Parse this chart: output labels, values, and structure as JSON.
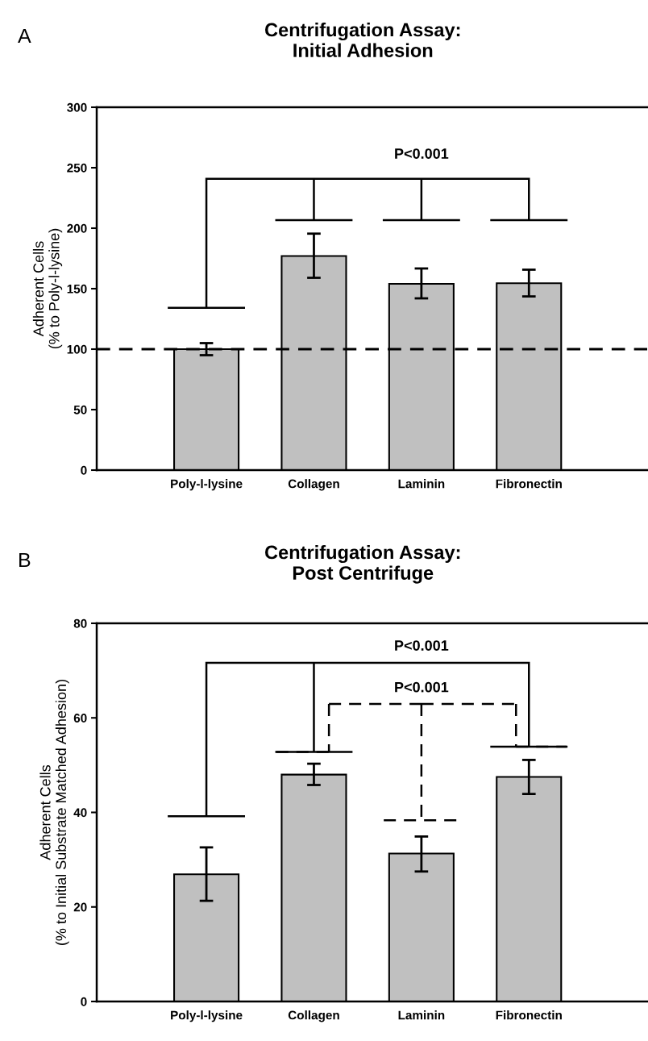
{
  "chart_data": [
    {
      "type": "bar",
      "title": "Centrifugation Assay:\nInitial Adhesion",
      "ylabel": "Adherent Cells\n(% to Poly-l-lysine)",
      "categories": [
        "Poly-l-lysine",
        "Collagen",
        "Laminin",
        "Fibronectin"
      ],
      "values": [
        100,
        177,
        154,
        154.5
      ],
      "errors": [
        [
          95,
          105
        ],
        [
          159,
          195.5
        ],
        [
          142,
          166.7
        ],
        [
          143.6,
          165.7
        ]
      ],
      "color": "#c0c0c0",
      "ylim": [
        0,
        300
      ],
      "yticks": [
        0,
        50,
        100,
        150,
        200,
        250,
        300
      ],
      "ref_lines": [
        {
          "axis": "y",
          "value": 100,
          "line_style": "dashed",
          "color": "#000000"
        }
      ],
      "annotations": [
        "A",
        "P<0.001"
      ]
    },
    {
      "type": "bar",
      "title": "Centrifugation Assay:\nPost Centrifuge",
      "ylabel": "Adherent Cells\n(% to Initial Substrate Matched Adhesion)",
      "categories": [
        "Poly-l-lysine",
        "Collagen",
        "Laminin",
        "Fibronectin"
      ],
      "values": [
        26.9,
        48.0,
        31.3,
        47.5
      ],
      "errors": [
        [
          21.3,
          32.6
        ],
        [
          45.8,
          50.3
        ],
        [
          27.5,
          34.9
        ],
        [
          43.9,
          51.1
        ]
      ],
      "color": "#c0c0c0",
      "ylim": [
        0,
        80
      ],
      "yticks": [
        0,
        20,
        40,
        60,
        80
      ],
      "annotations": [
        "B",
        "P<0.001",
        "P<0.001"
      ]
    }
  ]
}
